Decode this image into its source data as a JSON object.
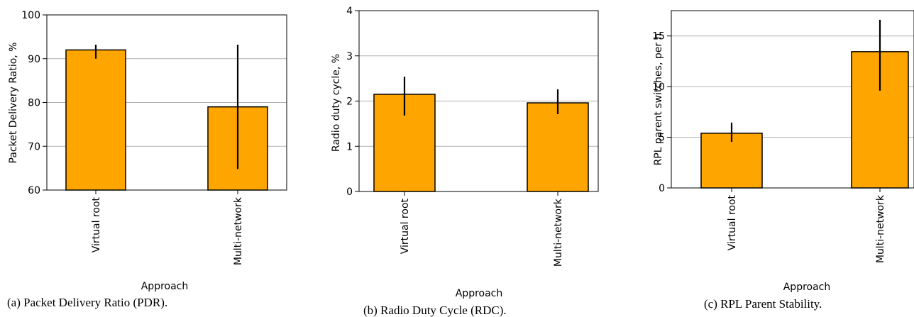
{
  "chart_data": [
    {
      "type": "bar",
      "categories": [
        "Virtual root",
        "Multi-network"
      ],
      "values": [
        92.0,
        79.0
      ],
      "errors": [
        [
          90.0,
          93.2
        ],
        [
          64.8,
          93.2
        ]
      ],
      "xlabel": "Approach",
      "ylabel": "Packet Delivery Ratio, %",
      "ylim": [
        60,
        100
      ],
      "yticks": [
        60,
        70,
        80,
        90,
        100
      ],
      "grid": "horizontal",
      "caption": "(a) Packet Delivery Ratio (PDR).",
      "bar_color": "#FFA500"
    },
    {
      "type": "bar",
      "categories": [
        "Virtual root",
        "Multi-network"
      ],
      "values": [
        2.15,
        1.96
      ],
      "errors": [
        [
          1.68,
          2.54
        ],
        [
          1.71,
          2.26
        ]
      ],
      "xlabel": "Approach",
      "ylabel": "Radio duty cycle, %",
      "ylim": [
        0,
        4
      ],
      "yticks": [
        0,
        1,
        2,
        3,
        4
      ],
      "grid": "horizontal",
      "caption": "(b) Radio Duty Cycle (RDC).",
      "bar_color": "#FFA500"
    },
    {
      "type": "bar",
      "categories": [
        "Virtual root",
        "Multi-network"
      ],
      "values": [
        5.4,
        13.45
      ],
      "errors": [
        [
          4.55,
          6.45
        ],
        [
          9.6,
          16.6
        ]
      ],
      "xlabel": "Approach",
      "ylabel": "RPL parent switches, per h",
      "ylim": [
        0,
        17.5
      ],
      "yticks": [
        0,
        5,
        10,
        15
      ],
      "grid": "horizontal",
      "caption": "(c) RPL Parent Stability.",
      "bar_color": "#FFA500"
    }
  ]
}
